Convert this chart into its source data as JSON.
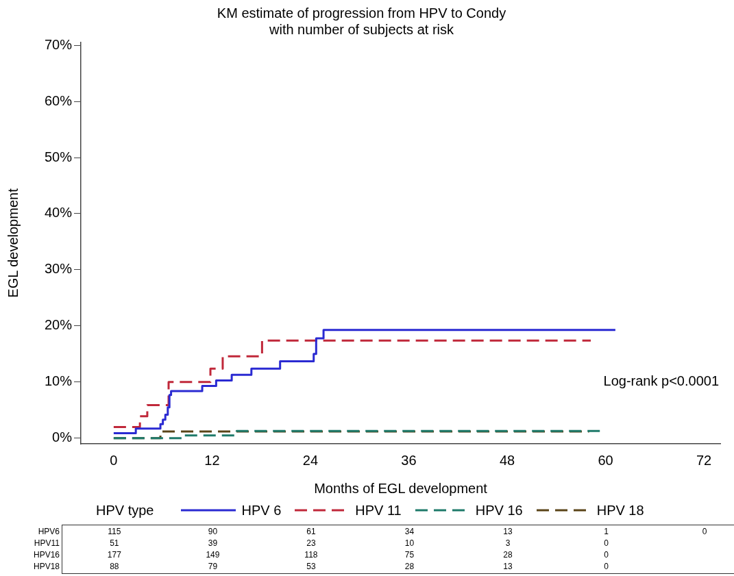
{
  "chart_data": {
    "type": "step",
    "title": "KM estimate of progression from HPV to Condy\nwith number of subjects at risk",
    "xlabel": "Months of EGL development",
    "ylabel": "EGL development",
    "legend_title": "HPV type",
    "legend": "bottom",
    "grid": false,
    "marker": "none",
    "xlim": [
      -4,
      74
    ],
    "xticks": [
      0,
      12,
      24,
      36,
      48,
      60,
      72
    ],
    "ylim": [
      -1,
      70.5
    ],
    "yticks": [
      {
        "value": 0,
        "label": "0%"
      },
      {
        "value": 10,
        "label": "10%"
      },
      {
        "value": 20,
        "label": "20%"
      },
      {
        "value": 30,
        "label": "30%"
      },
      {
        "value": 40,
        "label": "40%"
      },
      {
        "value": 50,
        "label": "50%"
      },
      {
        "value": 60,
        "label": "60%"
      },
      {
        "value": 70,
        "label": "70%"
      }
    ],
    "series": [
      {
        "name": "HPV 6",
        "color": "#2a2ad2",
        "line_style": "solid",
        "x": [
          0,
          2.7,
          5.7,
          6.0,
          6.3,
          6.6,
          6.8,
          7.0,
          10.8,
          12.5,
          14.4,
          16.8,
          20.3,
          24.4,
          24.7,
          25.6,
          61.2
        ],
        "values": [
          0.9,
          1.7,
          2.5,
          3.3,
          4.2,
          5.5,
          7.7,
          8.4,
          9.3,
          10.3,
          11.3,
          12.4,
          13.7,
          15.0,
          17.8,
          19.3,
          19.3
        ]
      },
      {
        "name": "HPV 11",
        "color": "#c0283a",
        "line_style": "dashed",
        "x": [
          0,
          3.2,
          4.1,
          6.7,
          11.8,
          13.3,
          18.1,
          58.2
        ],
        "values": [
          2.0,
          3.9,
          5.9,
          10.0,
          12.4,
          14.6,
          17.4,
          17.4
        ]
      },
      {
        "name": "HPV 16",
        "color": "#1e7a6a",
        "line_style": "dashed",
        "x": [
          0,
          6.2,
          8.5,
          15,
          59.5
        ],
        "values": [
          0,
          0,
          0.5,
          1.3,
          1.3
        ]
      },
      {
        "name": "HPV 18",
        "color": "#5a4418",
        "line_style": "dashed",
        "x": [
          0,
          5.7,
          58.0
        ],
        "values": [
          0,
          1.2,
          1.2
        ]
      }
    ],
    "annotations": [
      "Log-rank p<0.0001",
      "HPV6 115 90 61 34 13 1 0",
      "HPV11 51 39 23 10 3 0",
      "HPV16 177 149 118 75 28 0",
      "HPV18 88 79 53 28 13 0"
    ]
  }
}
